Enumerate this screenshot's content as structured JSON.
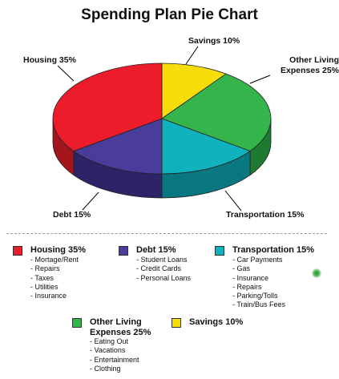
{
  "chart_data": {
    "type": "pie",
    "title": "Spending Plan Pie Chart",
    "slices": [
      {
        "label": "Savings",
        "value": 10,
        "callout": "Savings 10%",
        "color": "#f8dd0c",
        "side": "#b9a000"
      },
      {
        "label": "Other Living Expenses",
        "value": 25,
        "callout": "Other Living Expenses 25%",
        "color": "#34b44a",
        "side": "#1e7a31"
      },
      {
        "label": "Transportation",
        "value": 15,
        "callout": "Transportation 15%",
        "color": "#0fb2bd",
        "side": "#087780"
      },
      {
        "label": "Debt",
        "value": 15,
        "callout": "Debt 15%",
        "color": "#4a3c9a",
        "side": "#2d2367"
      },
      {
        "label": "Housing",
        "value": 35,
        "callout": "Housing 35%",
        "color": "#ec1c2a",
        "side": "#a4141c"
      }
    ]
  },
  "callouts": {
    "savings": "Savings 10%",
    "other_living": "Other Living Expenses 25%",
    "transportation": "Transportation 15%",
    "debt": "Debt 15%",
    "housing": "Housing 35%"
  },
  "legend": {
    "housing": {
      "title": "Housing 35%",
      "items": [
        "Mortage/Rent",
        "Repairs",
        "Taxes",
        "Utilities",
        "Insurance"
      ]
    },
    "debt": {
      "title": "Debt 15%",
      "items": [
        "Student Loans",
        "Credit Cards",
        "Personal Loans"
      ]
    },
    "transportation": {
      "title": "Transportation 15%",
      "items": [
        "Car Payments",
        "Gas",
        "Insurance",
        "Repairs",
        "Parking/Tolls",
        "Train/Bus Fees"
      ]
    },
    "other_living": {
      "title": "Other Living Expenses 25%",
      "items": [
        "Eating Out",
        "Vacations",
        "Entertainment",
        "Clothing"
      ]
    },
    "savings": {
      "title": "Savings 10%",
      "items": []
    }
  },
  "colors": {
    "housing": "#ec1c2a",
    "debt": "#4a3c9a",
    "transportation": "#0fb2bd",
    "other_living": "#34b44a",
    "savings": "#f8dd0c"
  }
}
